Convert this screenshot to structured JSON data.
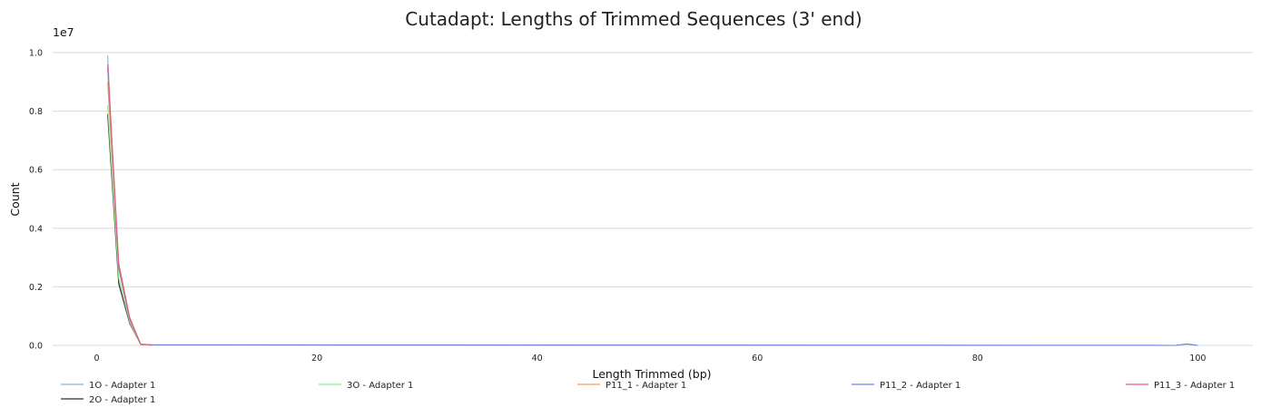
{
  "chart_data": {
    "type": "line",
    "title": "Cutadapt: Lengths of Trimmed Sequences (3' end)",
    "xlabel": "Length Trimmed (bp)",
    "ylabel": "Count",
    "y_offset_label": "1e7",
    "xlim": [
      -4,
      105
    ],
    "ylim": [
      0,
      1.0
    ],
    "x_ticks": [
      0,
      20,
      40,
      60,
      80,
      100
    ],
    "y_ticks": [
      0.0,
      0.2,
      0.4,
      0.6,
      0.8,
      1.0
    ],
    "x_tick_labels": [
      "0",
      "20",
      "40",
      "60",
      "80",
      "100"
    ],
    "y_tick_labels": [
      "0.0",
      "0.2",
      "0.4",
      "0.6",
      "0.8",
      "1.0"
    ],
    "grid": "horizontal",
    "legend_position": "bottom",
    "series": [
      {
        "name": "1O - Adapter 1",
        "color": "#7fb9e0",
        "x": [
          1,
          2,
          3,
          4,
          5,
          98,
          99,
          100
        ],
        "y": [
          0.99,
          0.22,
          0.08,
          0.004,
          0.002,
          0.0,
          0.005,
          0.0
        ]
      },
      {
        "name": "2O - Adapter 1",
        "color": "#333333",
        "x": [
          1,
          2,
          3,
          4,
          5
        ],
        "y": [
          0.79,
          0.21,
          0.075,
          0.003,
          0.001
        ]
      },
      {
        "name": "3O - Adapter 1",
        "color": "#90e890",
        "x": [
          1,
          2,
          3,
          4,
          5
        ],
        "y": [
          0.82,
          0.23,
          0.08,
          0.003,
          0.001
        ]
      },
      {
        "name": "P11_1 - Adapter 1",
        "color": "#f5a060",
        "x": [
          1,
          2,
          3,
          4,
          5
        ],
        "y": [
          0.9,
          0.26,
          0.085,
          0.004,
          0.002
        ]
      },
      {
        "name": "P11_2 - Adapter 1",
        "color": "#7080e0",
        "x": [
          1,
          2,
          3,
          4,
          5,
          98,
          99,
          100
        ],
        "y": [
          0.95,
          0.27,
          0.09,
          0.004,
          0.002,
          0.0,
          0.005,
          0.0
        ]
      },
      {
        "name": "P11_3 - Adapter 1",
        "color": "#e85c7c",
        "x": [
          1,
          2,
          3,
          4,
          5
        ],
        "y": [
          0.96,
          0.28,
          0.095,
          0.004,
          0.002
        ]
      }
    ]
  }
}
